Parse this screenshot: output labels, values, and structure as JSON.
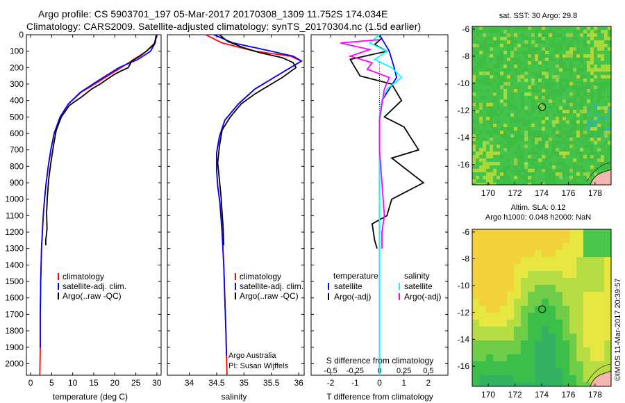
{
  "header": {
    "line1": "Argo profile: CS 5903701_197 05-Mar-2017 20170308_1309 11.752S 174.034E",
    "line2": "Climatology: CARS2009. Satellite-adjusted climatology: synTS_20170304.nc (1.5d earlier)"
  },
  "colors": {
    "climatology": "#ff0000",
    "satellite": "#0000ff",
    "argo": "#000000",
    "salinity_satellite": "#00ffff",
    "salinity_argo": "#ff00ff",
    "map_green": "#3fbf3f",
    "map_yellow": "#f2e641",
    "land": "#f4b6b0"
  },
  "chart_data": [
    {
      "id": "temperature",
      "type": "line",
      "xlabel": "temperature (deg C)",
      "ylabel": "",
      "xlim": [
        -1,
        31
      ],
      "ylim": [
        2070,
        0
      ],
      "xticks": [
        0,
        5,
        10,
        15,
        20,
        25,
        30
      ],
      "yticks": [
        0,
        100,
        200,
        300,
        400,
        500,
        600,
        700,
        800,
        900,
        1000,
        1100,
        1200,
        1300,
        1400,
        1500,
        1600,
        1700,
        1800,
        1900,
        2000
      ],
      "series": [
        {
          "name": "climatology",
          "color": "#ff0000",
          "x": [
            29.8,
            29.5,
            27.5,
            24.5,
            21.5,
            16.5,
            12.0,
            9.0,
            7.0,
            5.6,
            4.8,
            4.2,
            3.7,
            3.3,
            3.0,
            2.8,
            2.6,
            2.5,
            2.4,
            2.3,
            2.3,
            2.2
          ],
          "y": [
            0,
            50,
            100,
            150,
            200,
            280,
            350,
            420,
            500,
            600,
            700,
            800,
            900,
            1000,
            1100,
            1200,
            1300,
            1400,
            1500,
            1700,
            1900,
            2070
          ]
        },
        {
          "name": "satellite-adj. clim.",
          "color": "#0000ff",
          "x": [
            29.9,
            29.6,
            28.5,
            25.5,
            21.0,
            16.0,
            11.8,
            9.0,
            7.0,
            5.6,
            4.8,
            4.2,
            3.7,
            3.3,
            3.0,
            2.8,
            2.6,
            2.5,
            2.4,
            2.3,
            2.3
          ],
          "y": [
            0,
            50,
            100,
            150,
            200,
            280,
            350,
            420,
            500,
            600,
            700,
            800,
            900,
            1000,
            1100,
            1200,
            1300,
            1400,
            1500,
            1700,
            1900
          ]
        },
        {
          "name": "Argo(..raw -QC)",
          "color": "#000000",
          "x": [
            30.0,
            29.8,
            29.3,
            27.5,
            26.0,
            24.0,
            23.2,
            21.5,
            20.0,
            18.8,
            16.5,
            14.5,
            12.0,
            9.2,
            7.3,
            6.1,
            5.4,
            4.8,
            4.3,
            4.0,
            3.8,
            3.9,
            3.6,
            3.6
          ],
          "y": [
            0,
            20,
            60,
            100,
            130,
            160,
            200,
            220,
            240,
            260,
            300,
            330,
            380,
            430,
            500,
            580,
            680,
            780,
            880,
            980,
            1080,
            1180,
            1250,
            1280
          ]
        }
      ],
      "legend": [
        "climatology",
        "satellite-adj. clim.",
        "Argo(..raw -QC)"
      ]
    },
    {
      "id": "salinity",
      "type": "line",
      "xlabel": "salinity",
      "xlim": [
        33.6,
        36.1
      ],
      "ylim": [
        2070,
        0
      ],
      "xticks": [
        34,
        34.5,
        35,
        35.5,
        36
      ],
      "xtick_labels": [
        "34",
        "34.5",
        "35",
        "35.5",
        "36"
      ],
      "series": [
        {
          "name": "climatology",
          "color": "#ff0000",
          "x": [
            34.3,
            34.6,
            35.2,
            35.85,
            36.05,
            35.7,
            35.2,
            34.9,
            34.65,
            34.55,
            34.5,
            34.5,
            34.52,
            34.56,
            34.6,
            34.63,
            34.65,
            34.67,
            34.68,
            34.69
          ],
          "y": [
            0,
            50,
            100,
            130,
            160,
            230,
            330,
            420,
            520,
            620,
            720,
            820,
            920,
            1020,
            1200,
            1400,
            1600,
            1800,
            1950,
            2070
          ]
        },
        {
          "name": "satellite-adj. clim.",
          "color": "#0000ff",
          "x": [
            34.45,
            34.8,
            35.5,
            35.9,
            36.05,
            35.7,
            35.2,
            34.9,
            34.65,
            34.55,
            34.5,
            34.5,
            34.52,
            34.56,
            34.6,
            34.63,
            34.65,
            34.67,
            34.68
          ],
          "y": [
            0,
            50,
            100,
            130,
            160,
            230,
            330,
            420,
            520,
            620,
            720,
            820,
            920,
            1020,
            1200,
            1400,
            1600,
            1800,
            1950
          ]
        },
        {
          "name": "Argo(..raw -QC)",
          "color": "#000000",
          "x": [
            34.55,
            34.7,
            35.0,
            35.3,
            35.7,
            35.9,
            35.95,
            35.7,
            35.5,
            35.2,
            34.95,
            34.75,
            34.6,
            34.55,
            34.52,
            34.55,
            34.58,
            34.6,
            34.62,
            34.63
          ],
          "y": [
            0,
            40,
            80,
            110,
            140,
            170,
            200,
            260,
            300,
            360,
            420,
            500,
            580,
            680,
            780,
            880,
            980,
            1080,
            1180,
            1280
          ]
        }
      ],
      "legend": [
        "climatology",
        "satellite-adj. clim.",
        "Argo(..raw -QC)"
      ],
      "annotations": [
        "Argo Australia",
        "PI: Susan Wijffels"
      ]
    },
    {
      "id": "difference",
      "type": "line",
      "xlabel": "T difference from climatology",
      "xlabel_top": "S difference from climatology",
      "xlim": [
        -2.8,
        2.8
      ],
      "ylim": [
        2070,
        0
      ],
      "xticks": [
        -2,
        -1,
        0,
        1,
        2
      ],
      "xtick_labels": [
        "-2",
        "-1",
        "0",
        "1",
        "2"
      ],
      "top_tick_labels": [
        "-0.5",
        "-0.25",
        "0",
        "0.25",
        "0.5"
      ],
      "series": [
        {
          "name": "temperature satellite",
          "color": "#0000ff",
          "x": [
            0.0,
            0.2,
            0.4,
            0.5,
            0.6,
            0.7,
            0.4,
            0.1,
            0.0,
            0.0,
            0.0,
            0.0,
            0.0
          ],
          "y": [
            0,
            50,
            100,
            150,
            200,
            260,
            330,
            400,
            500,
            700,
            1000,
            1500,
            2070
          ]
        },
        {
          "name": "temperature Argo(-adj)",
          "color": "#000000",
          "x": [
            0.1,
            -0.2,
            0.3,
            -1.2,
            -0.8,
            0.5,
            0.9,
            0.2,
            1.0,
            1.6,
            0.5,
            1.8,
            0.5,
            0.3,
            -0.3,
            -0.2,
            -0.1
          ],
          "y": [
            20,
            60,
            100,
            150,
            250,
            300,
            400,
            500,
            560,
            700,
            750,
            900,
            1000,
            1100,
            1150,
            1250,
            1300
          ]
        },
        {
          "name": "salinity satellite",
          "color": "#00ffff",
          "x": [
            0.0,
            -0.4,
            0.3,
            -0.2,
            0.5,
            0.9,
            0.3,
            0.1,
            0.0,
            0.0,
            0.0,
            0.0,
            0.0
          ],
          "y": [
            0,
            50,
            100,
            150,
            200,
            260,
            330,
            400,
            500,
            700,
            1000,
            1500,
            2070
          ]
        },
        {
          "name": "salinity Argo(-adj)",
          "color": "#ff00ff",
          "x": [
            0.0,
            -1.6,
            -0.4,
            -1.2,
            -0.3,
            -0.5,
            0.4,
            0.2,
            0.1,
            0.0,
            0.0,
            0.1,
            0.2,
            0.1,
            0.1
          ],
          "y": [
            30,
            50,
            90,
            130,
            170,
            210,
            260,
            330,
            420,
            520,
            700,
            900,
            1100,
            1200,
            1300
          ]
        }
      ],
      "legend_groups": [
        {
          "title": "temperature",
          "items": [
            "satellite",
            "Argo(-adj)"
          ]
        },
        {
          "title": "salinity",
          "items": [
            "satellite",
            "Argo(-adj)"
          ]
        }
      ]
    },
    {
      "id": "sst_map",
      "type": "heatmap",
      "title": "sat. SST: 30 Argo: 29.8",
      "xticks": [
        170,
        172,
        174,
        176,
        178
      ],
      "yticks": [
        -6,
        -8,
        -10,
        -12,
        -14,
        -16
      ],
      "xlim": [
        168.8,
        179.2
      ],
      "ylim": [
        -17.5,
        -5.8
      ],
      "marker": {
        "lon": 174.034,
        "lat": -11.752
      }
    },
    {
      "id": "sla_map",
      "type": "heatmap",
      "title": "Altim. SLA: 0.12",
      "subtitle": "Argo h1000: 0.048 h2000: NaN",
      "xticks": [
        170,
        172,
        174,
        176,
        178
      ],
      "yticks": [
        -6,
        -8,
        -10,
        -12,
        -14,
        -16
      ],
      "xlim": [
        168.8,
        179.2
      ],
      "ylim": [
        -17.5,
        -5.8
      ],
      "marker": {
        "lon": 174.034,
        "lat": -11.752
      }
    }
  ],
  "credit": "©IMOS 11-Mar-2017 20:39:57"
}
